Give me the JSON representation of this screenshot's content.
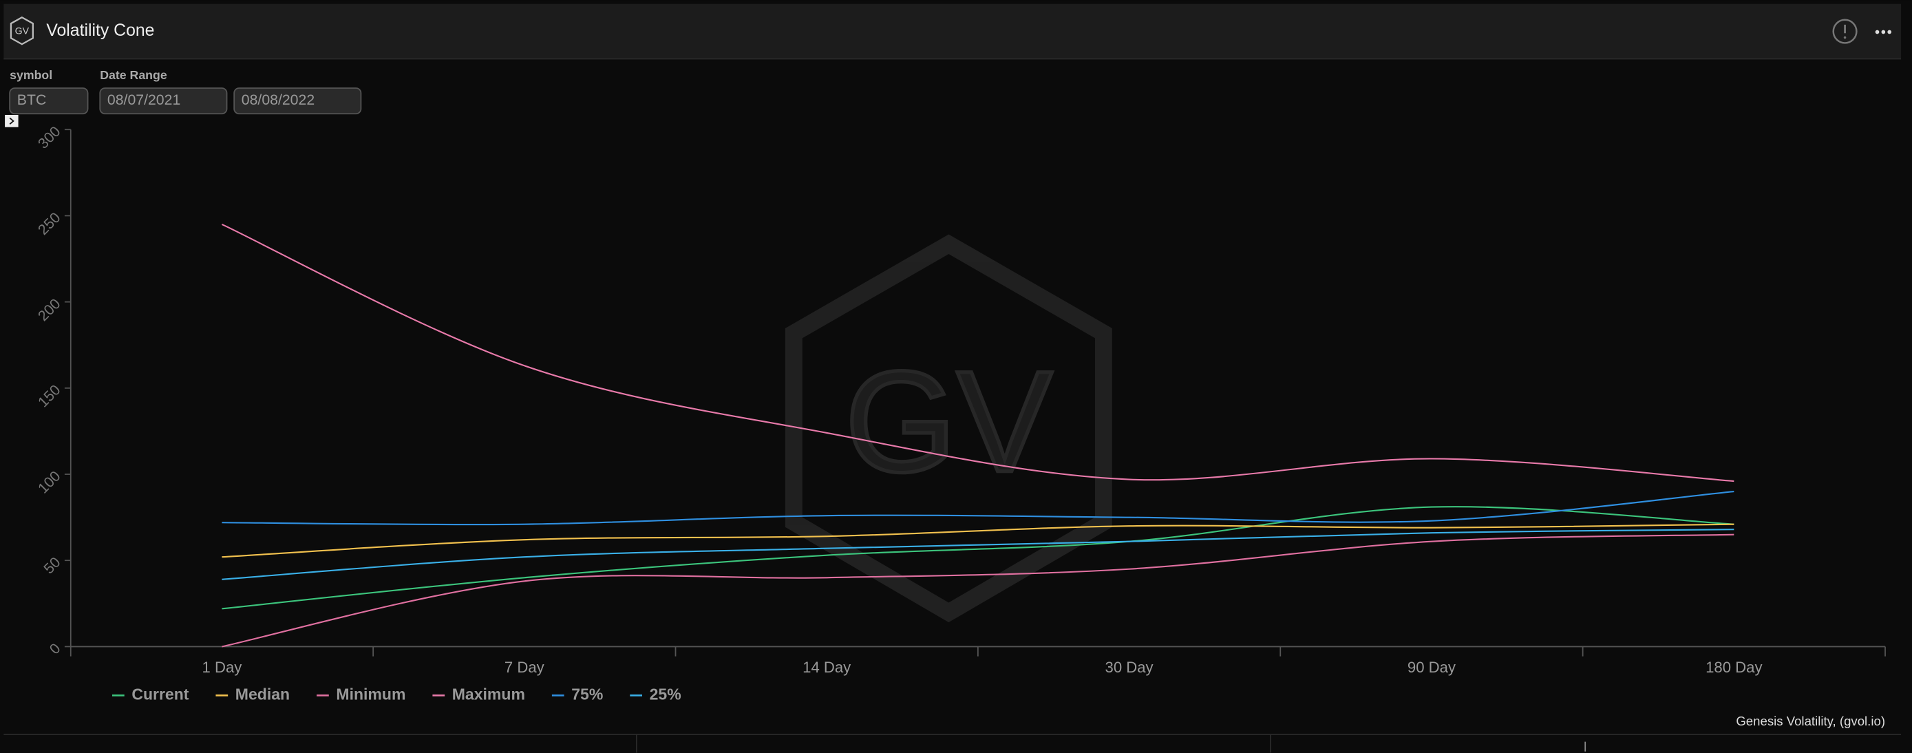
{
  "header": {
    "logo": "GV",
    "title": "Volatility Cone"
  },
  "filters": {
    "symbol_label": "symbol",
    "symbol": "BTC",
    "date_range_label": "Date Range",
    "start_date": "08/07/2021",
    "end_date": "08/08/2022"
  },
  "chart_data": {
    "type": "line",
    "watermark": "GV",
    "categories": [
      "1 Day",
      "7 Day",
      "14 Day",
      "30 Day",
      "90 Day",
      "180 Day"
    ],
    "series": [
      {
        "name": "Current",
        "color": "#3cc47c",
        "values": [
          22,
          40,
          53,
          61,
          81,
          71
        ]
      },
      {
        "name": "Median",
        "color": "#f2c14e",
        "values": [
          52,
          62,
          64,
          70,
          69,
          71
        ]
      },
      {
        "name": "Minimum",
        "color": "#e070a0",
        "values": [
          0,
          38,
          40,
          45,
          61,
          65
        ]
      },
      {
        "name": "Maximum",
        "color": "#e87aaa",
        "values": [
          245,
          163,
          124,
          97,
          109,
          96
        ]
      },
      {
        "name": "75%",
        "color": "#2f8fe0",
        "values": [
          72,
          71,
          76,
          75,
          73,
          90
        ]
      },
      {
        "name": "25%",
        "color": "#3ab0e8",
        "values": [
          39,
          52,
          57,
          61,
          66,
          68
        ]
      }
    ],
    "ylim": [
      0,
      300
    ],
    "yticks": [
      0,
      50,
      100,
      150,
      200,
      250,
      300
    ],
    "grid": false
  },
  "footer": {
    "credit": "Genesis Volatility, (gvol.io)"
  }
}
